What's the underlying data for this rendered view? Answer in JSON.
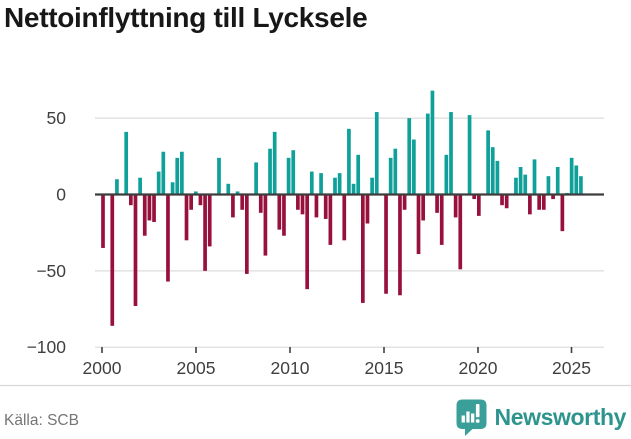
{
  "title": "Nettoinflyttning till Lycksele",
  "footer": {
    "source_label": "Källa: SCB",
    "brand_name": "Newsworthy"
  },
  "colors": {
    "positive_bar": "#0fa09a",
    "negative_bar": "#98103c",
    "zero_line": "#3d3d3d",
    "gridline": "#dcdcdc",
    "axis_text": "#3f3f3f",
    "divider": "#d8d8d8",
    "title_text": "#171717",
    "source_text": "#757575",
    "brand_teal": "#2e948e",
    "badge_teal": "#3a9e99"
  },
  "chart_data": {
    "type": "bar",
    "title": "Nettoinflyttning till Lycksele",
    "frequency": "quarterly",
    "start_period": "2000 Q1",
    "end_period": "2025 Q4",
    "x_start_year": 2000,
    "xlabel": "",
    "ylabel": "",
    "grid": "horizontal",
    "legend": "none",
    "ylim": [
      -100,
      70
    ],
    "y_tick_values": [
      50,
      0,
      -50,
      -100
    ],
    "y_tick_labels": [
      "50",
      "0",
      "−50",
      "−100"
    ],
    "x_tick_values": [
      2000,
      2005,
      2010,
      2015,
      2020,
      2025
    ],
    "x_tick_labels": [
      "2000",
      "2005",
      "2010",
      "2015",
      "2020",
      "2025"
    ],
    "values": [
      -35,
      0,
      -86,
      10,
      0,
      41,
      -7,
      -73,
      11,
      -27,
      -17,
      -18,
      15,
      28,
      -57,
      8,
      24,
      28,
      -30,
      -10,
      2,
      -7,
      -50,
      -34,
      0,
      24,
      0,
      7,
      -15,
      2,
      -10,
      -52,
      0,
      21,
      -12,
      -40,
      30,
      41,
      -23,
      -27,
      24,
      29,
      -10,
      -13,
      -62,
      15,
      -15,
      14,
      -16,
      -33,
      11,
      14,
      -30,
      43,
      7,
      26,
      -71,
      -19,
      11,
      54,
      0,
      -65,
      24,
      30,
      -66,
      -10,
      50,
      36,
      -39,
      -17,
      53,
      68,
      -12,
      -33,
      26,
      54,
      -15,
      -49,
      0,
      52,
      -3,
      -14,
      0,
      42,
      31,
      22,
      -7,
      -9,
      0,
      11,
      18,
      13,
      -13,
      23,
      -10,
      -10,
      12,
      -3,
      18,
      -24,
      1,
      24,
      19,
      12
    ]
  }
}
